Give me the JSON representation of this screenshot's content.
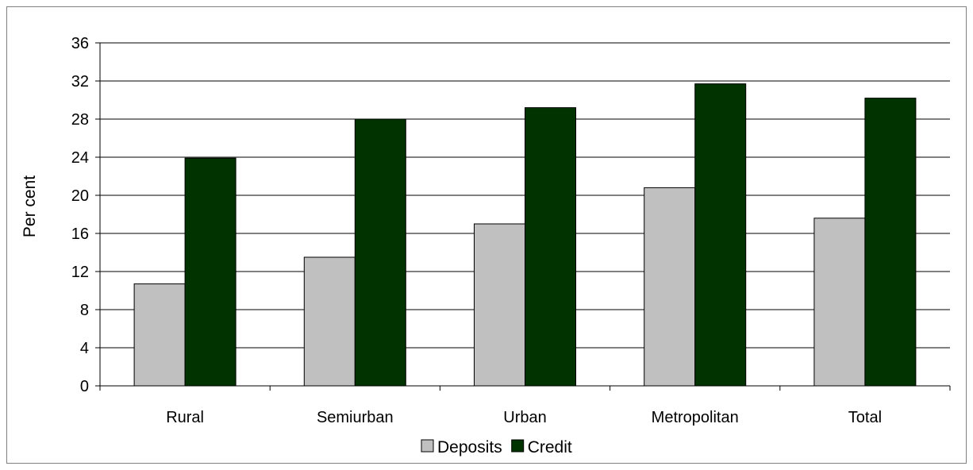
{
  "chart_data": {
    "type": "bar",
    "title": "",
    "xlabel": "",
    "ylabel": "Per cent",
    "ylim": [
      0,
      36
    ],
    "yticks": [
      0,
      4,
      8,
      12,
      16,
      20,
      24,
      28,
      32,
      36
    ],
    "grid": true,
    "legend_position": "bottom",
    "categories": [
      "Rural",
      "Semiurban",
      "Urban",
      "Metropolitan",
      "Total"
    ],
    "series": [
      {
        "name": "Deposits",
        "color": "#c0c0c0",
        "values": [
          10.7,
          13.5,
          17.0,
          20.8,
          17.6
        ]
      },
      {
        "name": "Credit",
        "color": "#003300",
        "values": [
          23.9,
          28.0,
          29.2,
          31.7,
          30.2
        ]
      }
    ]
  }
}
